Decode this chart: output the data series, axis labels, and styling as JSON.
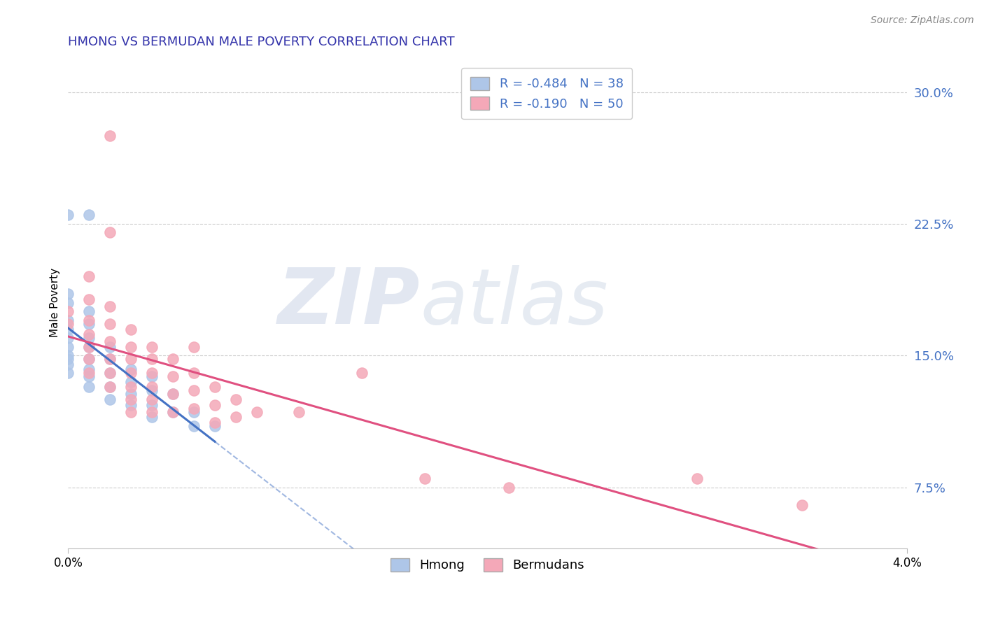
{
  "title": "HMONG VS BERMUDAN MALE POVERTY CORRELATION CHART",
  "source": "Source: ZipAtlas.com",
  "ylabel": "Male Poverty",
  "legend_hmong": "R = -0.484   N = 38",
  "legend_bermudan": "R = -0.190   N = 50",
  "hmong_color": "#aec6e8",
  "bermudan_color": "#f4a8b8",
  "trendline_hmong_color": "#4472c4",
  "trendline_bermudan_color": "#e05080",
  "hmong_points": [
    [
      0.0,
      0.23
    ],
    [
      0.001,
      0.23
    ],
    [
      0.0,
      0.185
    ],
    [
      0.0,
      0.18
    ],
    [
      0.0,
      0.17
    ],
    [
      0.0,
      0.165
    ],
    [
      0.0,
      0.16
    ],
    [
      0.0,
      0.155
    ],
    [
      0.0,
      0.15
    ],
    [
      0.0,
      0.148
    ],
    [
      0.0,
      0.145
    ],
    [
      0.0,
      0.14
    ],
    [
      0.001,
      0.175
    ],
    [
      0.001,
      0.168
    ],
    [
      0.001,
      0.16
    ],
    [
      0.001,
      0.155
    ],
    [
      0.001,
      0.148
    ],
    [
      0.001,
      0.142
    ],
    [
      0.001,
      0.138
    ],
    [
      0.001,
      0.132
    ],
    [
      0.002,
      0.155
    ],
    [
      0.002,
      0.148
    ],
    [
      0.002,
      0.14
    ],
    [
      0.002,
      0.132
    ],
    [
      0.002,
      0.125
    ],
    [
      0.003,
      0.142
    ],
    [
      0.003,
      0.135
    ],
    [
      0.003,
      0.128
    ],
    [
      0.003,
      0.122
    ],
    [
      0.004,
      0.138
    ],
    [
      0.004,
      0.13
    ],
    [
      0.004,
      0.122
    ],
    [
      0.004,
      0.115
    ],
    [
      0.005,
      0.128
    ],
    [
      0.005,
      0.118
    ],
    [
      0.006,
      0.118
    ],
    [
      0.006,
      0.11
    ],
    [
      0.007,
      0.11
    ]
  ],
  "bermudan_points": [
    [
      0.0,
      0.175
    ],
    [
      0.0,
      0.168
    ],
    [
      0.001,
      0.195
    ],
    [
      0.001,
      0.182
    ],
    [
      0.001,
      0.17
    ],
    [
      0.001,
      0.162
    ],
    [
      0.001,
      0.155
    ],
    [
      0.001,
      0.148
    ],
    [
      0.001,
      0.14
    ],
    [
      0.002,
      0.275
    ],
    [
      0.002,
      0.22
    ],
    [
      0.002,
      0.178
    ],
    [
      0.002,
      0.168
    ],
    [
      0.002,
      0.158
    ],
    [
      0.002,
      0.148
    ],
    [
      0.002,
      0.14
    ],
    [
      0.002,
      0.132
    ],
    [
      0.003,
      0.165
    ],
    [
      0.003,
      0.155
    ],
    [
      0.003,
      0.148
    ],
    [
      0.003,
      0.14
    ],
    [
      0.003,
      0.132
    ],
    [
      0.003,
      0.125
    ],
    [
      0.003,
      0.118
    ],
    [
      0.004,
      0.155
    ],
    [
      0.004,
      0.148
    ],
    [
      0.004,
      0.14
    ],
    [
      0.004,
      0.132
    ],
    [
      0.004,
      0.125
    ],
    [
      0.004,
      0.118
    ],
    [
      0.005,
      0.148
    ],
    [
      0.005,
      0.138
    ],
    [
      0.005,
      0.128
    ],
    [
      0.005,
      0.118
    ],
    [
      0.006,
      0.155
    ],
    [
      0.006,
      0.14
    ],
    [
      0.006,
      0.13
    ],
    [
      0.006,
      0.12
    ],
    [
      0.007,
      0.132
    ],
    [
      0.007,
      0.122
    ],
    [
      0.007,
      0.112
    ],
    [
      0.008,
      0.125
    ],
    [
      0.008,
      0.115
    ],
    [
      0.009,
      0.118
    ],
    [
      0.011,
      0.118
    ],
    [
      0.014,
      0.14
    ],
    [
      0.017,
      0.08
    ],
    [
      0.021,
      0.075
    ],
    [
      0.03,
      0.08
    ],
    [
      0.035,
      0.065
    ]
  ],
  "xlim": [
    0.0,
    0.04
  ],
  "ylim": [
    0.04,
    0.32
  ],
  "ytick_vals": [
    0.075,
    0.15,
    0.225,
    0.3
  ],
  "ytick_labels": [
    "7.5%",
    "15.0%",
    "22.5%",
    "30.0%"
  ],
  "xtick_vals": [
    0.0,
    0.04
  ],
  "xtick_labels": [
    "0.0%",
    "4.0%"
  ],
  "background_color": "#ffffff",
  "grid_color": "#cccccc",
  "title_color": "#3333aa",
  "ytick_color": "#4472c4"
}
